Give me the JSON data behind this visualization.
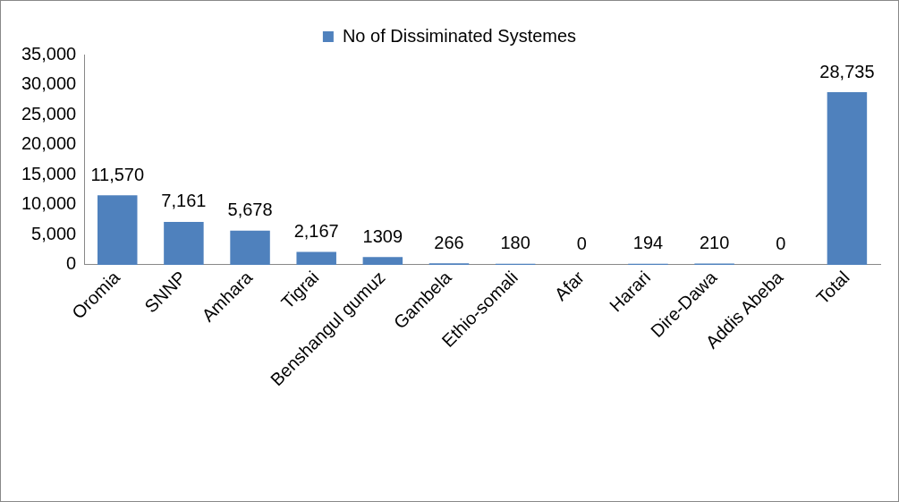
{
  "chart_data": {
    "type": "bar",
    "categories": [
      "Oromia",
      "SNNP",
      "Amhara",
      "Tigrai",
      "Benshangul gumuz",
      "Gambela",
      "Ethio-somali",
      "Afar",
      "Harari",
      "Dire-Dawa",
      "Addis Abeba",
      "Total"
    ],
    "series": [
      {
        "name": "No of Dissiminated Systemes",
        "color": "#4f81bd",
        "values": [
          11570,
          7161,
          5678,
          2167,
          1309,
          266,
          180,
          0,
          194,
          210,
          0,
          28735
        ],
        "value_labels": [
          "11,570",
          "7,161",
          "5,678",
          "2,167",
          "1309",
          "266",
          "180",
          "0",
          "194",
          "210",
          "0",
          "28,735"
        ]
      }
    ],
    "ylim": [
      0,
      35000
    ],
    "yticks": [
      {
        "value": 0,
        "label": "0"
      },
      {
        "value": 5000,
        "label": "5,000"
      },
      {
        "value": 10000,
        "label": "10,000"
      },
      {
        "value": 15000,
        "label": "15,000"
      },
      {
        "value": 20000,
        "label": "20,000"
      },
      {
        "value": 25000,
        "label": "25,000"
      },
      {
        "value": 30000,
        "label": "30,000"
      },
      {
        "value": 35000,
        "label": "35,000"
      }
    ],
    "legend": "top"
  }
}
